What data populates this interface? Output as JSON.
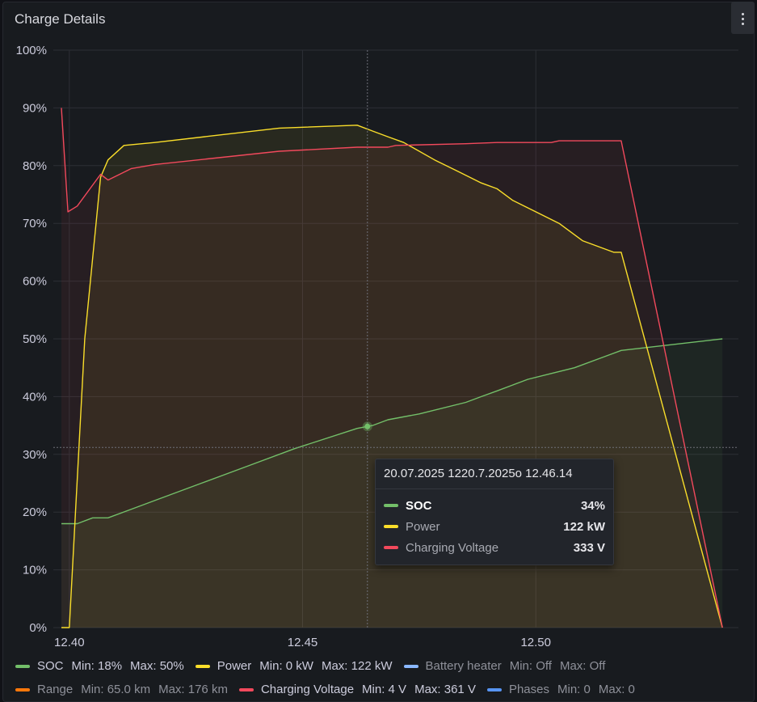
{
  "panel": {
    "title": "Charge Details"
  },
  "tooltip": {
    "header": "20.07.2025 1220.7.2025o 12.46.14",
    "rows": [
      {
        "name": "SOC",
        "value": "34%",
        "color": "#73bf69"
      },
      {
        "name": "Power",
        "value": "122 kW",
        "color": "#fade2a"
      },
      {
        "name": "Charging Voltage",
        "value": "333 V",
        "color": "#f2495c"
      }
    ]
  },
  "legend": {
    "row1": [
      {
        "name": "SOC",
        "min": "Min: 18%",
        "max": "Max: 50%",
        "color": "#73bf69"
      },
      {
        "name": "Power",
        "min": "Min: 0 kW",
        "max": "Max: 122 kW",
        "color": "#fade2a"
      },
      {
        "name": "Battery heater",
        "min": "Min: Off",
        "max": "Max: Off",
        "color": "#8ab8ff"
      }
    ],
    "row2": [
      {
        "name": "Range",
        "min": "Min: 65.0 km",
        "max": "Max: 176 km",
        "color": "#ff780a"
      },
      {
        "name": "Charging Voltage",
        "min": "Min: 4 V",
        "max": "Max: 361 V",
        "color": "#f2495c"
      },
      {
        "name": "Phases",
        "min": "Min: 0",
        "max": "Max: 0",
        "color": "#5794f2"
      }
    ]
  },
  "chart_data": {
    "type": "area",
    "title": "Charge Details",
    "x_ticks": [
      "12.40",
      "12.45",
      "12.50"
    ],
    "y_ticks": [
      "0%",
      "10%",
      "20%",
      "30%",
      "40%",
      "50%",
      "60%",
      "70%",
      "80%",
      "90%",
      "100%"
    ],
    "ylim": [
      0,
      100
    ],
    "xlim": [
      12.3983,
      12.5417
    ],
    "hover_x": 12.4639,
    "grid": true,
    "legend_placement": "bottom",
    "series": [
      {
        "name": "SOC",
        "color": "#73bf69",
        "x": [
          12.3983,
          12.4017,
          12.405,
          12.4083,
          12.4133,
          12.4183,
          12.4283,
          12.4383,
          12.4483,
          12.4617,
          12.465,
          12.4683,
          12.475,
          12.485,
          12.4883,
          12.4917,
          12.495,
          12.4983,
          12.5033,
          12.5083,
          12.515,
          12.5183,
          12.54
        ],
        "y": [
          18,
          18,
          19,
          19,
          20.5,
          22,
          25,
          28,
          31,
          34.5,
          35,
          36,
          37,
          39,
          40,
          41,
          42,
          43,
          44,
          45,
          47,
          48,
          50
        ]
      },
      {
        "name": "Power",
        "color": "#fade2a",
        "x": [
          12.3983,
          12.4,
          12.4033,
          12.4067,
          12.4083,
          12.4117,
          12.4183,
          12.445,
          12.4617,
          12.465,
          12.4683,
          12.4717,
          12.4783,
          12.4833,
          12.4883,
          12.4917,
          12.495,
          12.5,
          12.505,
          12.51,
          12.5167,
          12.5183,
          12.54
        ],
        "y": [
          0,
          0,
          50,
          78,
          81,
          83.5,
          84,
          86.5,
          87,
          86,
          85,
          84,
          81,
          79,
          77,
          76,
          74,
          72,
          70,
          67,
          65,
          65,
          0
        ]
      },
      {
        "name": "Charging Voltage",
        "color": "#f2495c",
        "x": [
          12.3983,
          12.3997,
          12.4017,
          12.4067,
          12.4083,
          12.4133,
          12.4183,
          12.445,
          12.4617,
          12.4683,
          12.47,
          12.485,
          12.4917,
          12.5033,
          12.505,
          12.5183,
          12.54
        ],
        "y": [
          90,
          72,
          73,
          78.5,
          77.5,
          79.5,
          80.2,
          82.5,
          83.2,
          83.2,
          83.5,
          83.8,
          84,
          84,
          84.3,
          84.3,
          0
        ]
      }
    ]
  }
}
